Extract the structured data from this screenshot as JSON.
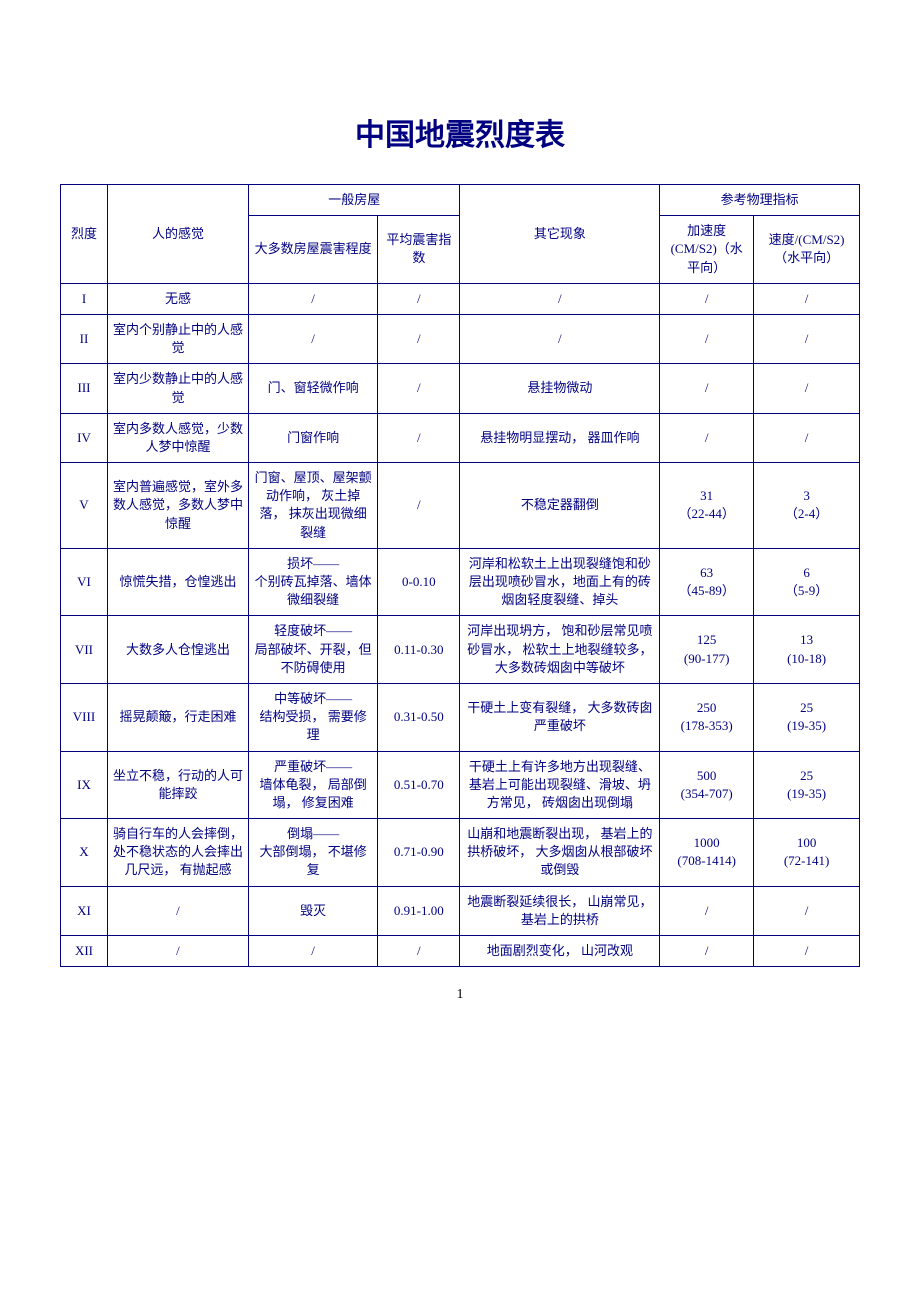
{
  "title": "中国地震烈度表",
  "headers": {
    "intensity": "烈度",
    "feeling": "人的感觉",
    "building_group": "一般房屋",
    "damage_degree": "大多数房屋震害程度",
    "damage_index": "平均震害指数",
    "other": "其它现象",
    "physical_group": "参考物理指标",
    "acceleration": "加速度(CM/S2)（水平向）",
    "velocity": "速度/(CM/S2)（水平向）"
  },
  "rows": [
    {
      "intensity": "I",
      "feeling": "无感",
      "damage": "/",
      "index": "/",
      "other": "/",
      "accel": "/",
      "velocity": "/"
    },
    {
      "intensity": "II",
      "feeling": "室内个别静止中的人感觉",
      "damage": "/",
      "index": "/",
      "other": "/",
      "accel": "/",
      "velocity": "/"
    },
    {
      "intensity": "III",
      "feeling": "室内少数静止中的人感觉",
      "damage": "门、窗轻微作响",
      "index": "/",
      "other": "悬挂物微动",
      "accel": "/",
      "velocity": "/"
    },
    {
      "intensity": "IV",
      "feeling": "室内多数人感觉，少数人梦中惊醒",
      "damage": "门窗作响",
      "index": "/",
      "other": "悬挂物明显摆动， 器皿作响",
      "accel": "/",
      "velocity": "/"
    },
    {
      "intensity": "V",
      "feeling": "室内普遍感觉，室外多数人感觉，多数人梦中惊醒",
      "damage": "门窗、屋顶、屋架颤动作响， 灰土掉落， 抹灰出现微细裂缝",
      "index": "/",
      "other": "不稳定器翻倒",
      "accel": "31\n（22-44）",
      "velocity": "3\n（2-4）"
    },
    {
      "intensity": "VI",
      "feeling": "惊慌失措，仓惶逃出",
      "damage": "损坏——\n个别砖瓦掉落、墙体微细裂缝",
      "index": "0-0.10",
      "other": "河岸和松软土上出现裂缝饱和砂层出现喷砂冒水，地面上有的砖烟囱轻度裂缝、掉头",
      "accel": "63\n（45-89）",
      "velocity": "6\n（5-9）"
    },
    {
      "intensity": "VII",
      "feeling": "大数多人仓惶逃出",
      "damage": "轻度破坏——\n局部破坏、开裂，但不防碍使用",
      "index": "0.11-0.30",
      "other": "河岸出现坍方， 饱和砂层常见喷砂冒水， 松软土上地裂缝较多， 大多数砖烟囱中等破坏",
      "accel": "125\n(90-177)",
      "velocity": "13\n(10-18)"
    },
    {
      "intensity": "VIII",
      "feeling": "摇晃颠簸，行走困难",
      "damage": "中等破坏——\n结构受损， 需要修理",
      "index": "0.31-0.50",
      "other": "干硬土上变有裂缝， 大多数砖囱严重破坏",
      "accel": "250\n(178-353)",
      "velocity": "25\n(19-35)"
    },
    {
      "intensity": "IX",
      "feeling": "坐立不稳，行动的人可能摔跤",
      "damage": "严重破坏——\n墙体龟裂， 局部倒塌， 修复困难",
      "index": "0.51-0.70",
      "other": "干硬土上有许多地方出现裂缝、基岩上可能出现裂缝、滑坡、坍方常见， 砖烟囱出现倒塌",
      "accel": "500\n(354-707)",
      "velocity": "25\n(19-35)"
    },
    {
      "intensity": "X",
      "feeling": "骑自行车的人会摔倒，处不稳状态的人会摔出几尺远， 有抛起感",
      "damage": "倒塌——\n大部倒塌， 不堪修复",
      "index": "0.71-0.90",
      "other": "山崩和地震断裂出现， 基岩上的拱桥破坏， 大多烟囱从根部破坏或倒毁",
      "accel": "1000\n(708-1414)",
      "velocity": "100\n(72-141)"
    },
    {
      "intensity": "XI",
      "feeling": "/",
      "damage": "毁灭",
      "index": "0.91-1.00",
      "other": "地震断裂延续很长， 山崩常见， 基岩上的拱桥",
      "accel": "/",
      "velocity": "/"
    },
    {
      "intensity": "XII",
      "feeling": "/",
      "damage": "/",
      "index": "/",
      "other": "地面剧烈变化， 山河改观",
      "accel": "/",
      "velocity": "/"
    }
  ],
  "page_number": "1"
}
